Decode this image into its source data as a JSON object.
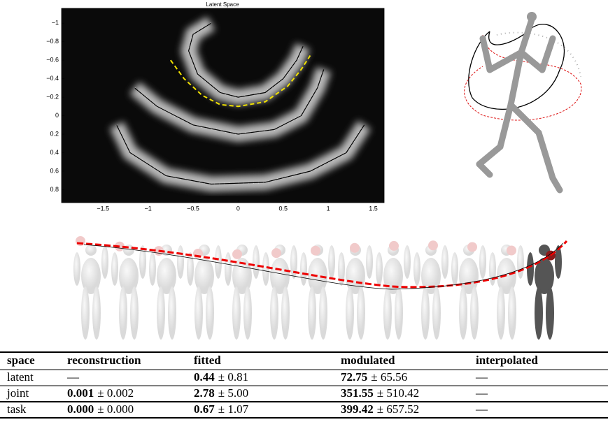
{
  "chart_data": {
    "type": "line",
    "title": "Latent Space",
    "xlim": [
      -1.96,
      1.62
    ],
    "ylim": [
      -1.16,
      0.94
    ],
    "y_inverted": true,
    "grid": false,
    "xticks": [
      {
        "value": -1.5,
        "label": "−1.5"
      },
      {
        "value": -1,
        "label": "−1"
      },
      {
        "value": -0.5,
        "label": "−0.5"
      },
      0,
      0.5,
      1,
      1.5
    ],
    "yticks": [
      {
        "value": -1,
        "label": "−1"
      },
      {
        "value": -0.8,
        "label": "−0.8"
      },
      {
        "value": -0.6,
        "label": "−0.6"
      },
      {
        "value": -0.4,
        "label": "−0.4"
      },
      {
        "value": -0.2,
        "label": "−0.2"
      },
      0,
      0.2,
      0.4,
      0.6,
      0.8
    ],
    "series": [
      {
        "color": "#f2e200",
        "dashed": true,
        "x": [
          -0.75,
          -0.6,
          -0.4,
          -0.2,
          0,
          0.3,
          0.55,
          0.7,
          0.8
        ],
        "values": [
          -0.6,
          -0.4,
          -0.22,
          -0.12,
          -0.1,
          -0.15,
          -0.32,
          -0.5,
          -0.65
        ]
      },
      {
        "color": "#000000",
        "dashed": false,
        "x": [
          -0.3,
          -0.5,
          -0.55,
          -0.45,
          -0.2,
          0,
          0.3,
          0.5,
          0.65,
          0.72
        ],
        "values": [
          -1.0,
          -0.88,
          -0.7,
          -0.45,
          -0.25,
          -0.2,
          -0.25,
          -0.4,
          -0.6,
          -0.75
        ]
      },
      {
        "color": "#000000",
        "dashed": false,
        "x": [
          -1.15,
          -0.9,
          -0.5,
          0,
          0.4,
          0.7,
          0.88,
          0.95
        ],
        "values": [
          -0.3,
          -0.1,
          0.1,
          0.2,
          0.15,
          0.0,
          -0.3,
          -0.5
        ]
      },
      {
        "color": "#000000",
        "dashed": false,
        "x": [
          -1.35,
          -1.2,
          -0.8,
          -0.3,
          0.3,
          0.8,
          1.2,
          1.4
        ],
        "values": [
          0.1,
          0.4,
          0.65,
          0.74,
          0.72,
          0.6,
          0.4,
          0.1
        ]
      }
    ]
  },
  "table": {
    "header": [
      "space",
      "reconstruction",
      "fitted",
      "modulated",
      "interpolated"
    ],
    "rows": [
      [
        "latent",
        "—",
        [
          "0.44",
          "± 0.81"
        ],
        [
          "72.75",
          "± 65.56"
        ],
        "—"
      ],
      [
        "joint",
        [
          "0.001",
          "± 0.002"
        ],
        [
          "2.78",
          "± 5.00"
        ],
        [
          "351.55",
          "± 510.42"
        ],
        "—"
      ],
      [
        "task",
        [
          "0.000",
          "± 0.000"
        ],
        [
          "0.67",
          "± 1.07"
        ],
        [
          "399.42",
          "± 657.52"
        ],
        "—"
      ]
    ]
  }
}
